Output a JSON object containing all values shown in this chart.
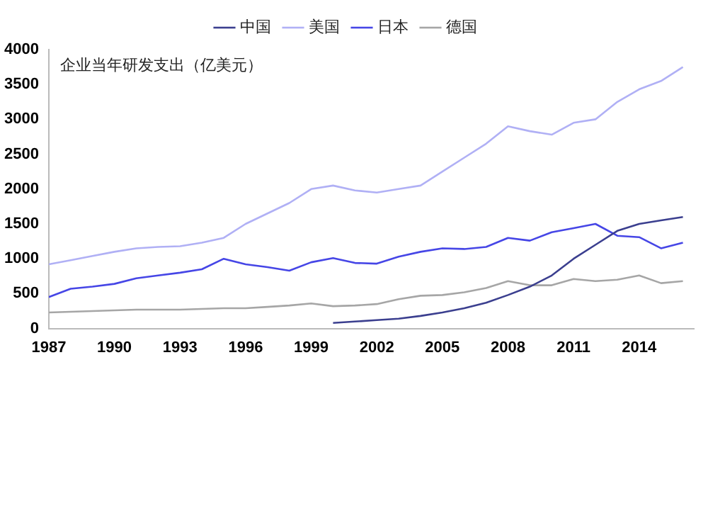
{
  "chart_data": {
    "type": "line",
    "annotations": [
      "企业当年研发支出（亿美元）"
    ],
    "x": [
      1987,
      1988,
      1989,
      1990,
      1991,
      1992,
      1993,
      1994,
      1995,
      1996,
      1997,
      1998,
      1999,
      2000,
      2001,
      2002,
      2003,
      2004,
      2005,
      2006,
      2007,
      2008,
      2009,
      2010,
      2011,
      2012,
      2013,
      2014,
      2015,
      2016
    ],
    "series": [
      {
        "name": "中国",
        "color": "#3b3f8f",
        "values": [
          null,
          null,
          null,
          null,
          null,
          null,
          null,
          null,
          null,
          null,
          null,
          null,
          null,
          80,
          100,
          120,
          140,
          180,
          230,
          290,
          370,
          480,
          600,
          760,
          1000,
          1200,
          1400,
          1500,
          1550,
          1600
        ]
      },
      {
        "name": "美国",
        "color": "#b0b0f5",
        "values": [
          920,
          980,
          1040,
          1100,
          1150,
          1170,
          1180,
          1230,
          1300,
          1500,
          1650,
          1800,
          2000,
          2050,
          1980,
          1950,
          2000,
          2050,
          2250,
          2450,
          2650,
          2900,
          2830,
          2780,
          2950,
          3000,
          3250,
          3430,
          3550,
          3750
        ]
      },
      {
        "name": "日本",
        "color": "#4646e6",
        "values": [
          450,
          570,
          600,
          640,
          720,
          760,
          800,
          850,
          1000,
          920,
          880,
          830,
          950,
          1010,
          940,
          930,
          1030,
          1100,
          1150,
          1140,
          1170,
          1300,
          1260,
          1380,
          1440,
          1500,
          1330,
          1310,
          1150,
          1230
        ]
      },
      {
        "name": "德国",
        "color": "#a6a6a6",
        "values": [
          230,
          240,
          250,
          260,
          270,
          270,
          270,
          280,
          290,
          290,
          310,
          330,
          360,
          320,
          330,
          350,
          420,
          470,
          480,
          520,
          580,
          680,
          620,
          620,
          710,
          680,
          700,
          760,
          650,
          680
        ]
      }
    ],
    "xlim": [
      1987,
      2016.5
    ],
    "xticks": [
      1987,
      1990,
      1993,
      1996,
      1999,
      2002,
      2005,
      2008,
      2011,
      2014
    ],
    "ylim": [
      0,
      4000
    ],
    "yticks": [
      0,
      500,
      1000,
      1500,
      2000,
      2500,
      3000,
      3500,
      4000
    ],
    "grid": false,
    "legend": "top",
    "marker": "none",
    "line_style": "solid"
  }
}
